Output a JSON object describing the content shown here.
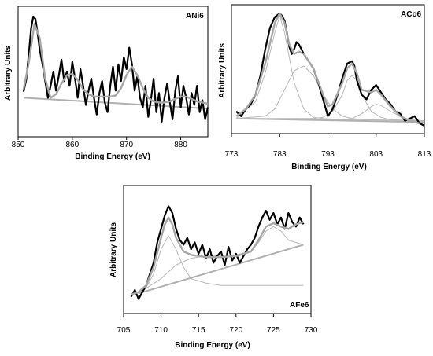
{
  "chart_data": [
    {
      "type": "line",
      "title": "ANi6",
      "xlabel": "Binding Energy (eV)",
      "ylabel": "Arbitrary Units",
      "xlim": [
        850,
        885
      ],
      "ylim": [
        0,
        100
      ],
      "xticks": [
        "850",
        "860",
        "870",
        "880"
      ],
      "xtick_values": [
        850,
        860,
        870,
        880
      ],
      "grid": false,
      "series": [
        {
          "role": "experimental",
          "x": [
            851,
            851.5,
            852,
            852.4,
            852.8,
            853.2,
            853.6,
            854,
            854.5,
            855,
            855.5,
            856,
            856.5,
            857,
            857.5,
            858,
            858.5,
            859,
            859.5,
            860,
            860.5,
            861,
            861.5,
            862,
            862.5,
            863,
            863.5,
            864,
            864.5,
            865,
            865.5,
            866,
            866.5,
            867,
            867.5,
            868,
            868.5,
            869,
            869.5,
            870,
            870.5,
            871,
            871.5,
            872,
            872.5,
            873,
            873.5,
            874,
            874.5,
            875,
            875.5,
            876,
            876.5,
            877,
            877.5,
            878,
            878.5,
            879,
            879.5,
            880,
            880.5,
            881,
            881.5,
            882,
            882.5,
            883,
            883.5,
            884,
            884.5,
            885
          ],
          "y": [
            35,
            45,
            68,
            88,
            98,
            96,
            84,
            70,
            58,
            44,
            30,
            40,
            52,
            36,
            48,
            62,
            44,
            52,
            40,
            60,
            46,
            30,
            54,
            40,
            24,
            36,
            46,
            30,
            16,
            34,
            44,
            26,
            18,
            40,
            56,
            36,
            58,
            44,
            64,
            54,
            72,
            58,
            36,
            48,
            30,
            22,
            40,
            14,
            28,
            46,
            18,
            34,
            10,
            30,
            42,
            26,
            12,
            36,
            48,
            22,
            40,
            30,
            16,
            34,
            24,
            40,
            18,
            28,
            12,
            22
          ]
        },
        {
          "role": "fit",
          "x": [
            851,
            852,
            853,
            854,
            855,
            856,
            857,
            858,
            859,
            860,
            861,
            862,
            863,
            864,
            865,
            866,
            867,
            868,
            869,
            870,
            871,
            872,
            873,
            874,
            875,
            876,
            877,
            878,
            879,
            880,
            881,
            882,
            883,
            884,
            885
          ],
          "y": [
            37,
            60,
            92,
            80,
            46,
            30,
            33,
            42,
            49,
            50,
            45,
            37,
            33,
            31,
            31,
            31,
            31,
            32,
            38,
            49,
            56,
            49,
            38,
            30,
            27,
            26,
            26,
            27,
            29,
            31,
            31,
            29,
            27,
            26,
            25
          ]
        },
        {
          "role": "baseline",
          "x": [
            851,
            885
          ],
          "y": [
            30,
            21
          ]
        }
      ]
    },
    {
      "type": "line",
      "title": "ACo6",
      "xlabel": "Binding Energy (eV)",
      "ylabel": "Arbitrary Units",
      "xlim": [
        773,
        813
      ],
      "ylim": [
        0,
        100
      ],
      "xticks": [
        "773",
        "783",
        "793",
        "803",
        "813"
      ],
      "xtick_values": [
        773,
        783,
        793,
        803,
        813
      ],
      "grid": false,
      "series": [
        {
          "role": "experimental",
          "x": [
            774,
            775,
            776,
            777,
            778,
            779,
            780,
            781,
            782,
            783,
            783.5,
            784,
            784.5,
            785,
            785.5,
            786,
            786.5,
            787,
            788,
            789,
            790,
            791,
            792,
            793,
            794,
            795,
            796,
            797,
            798,
            798.5,
            799,
            800,
            801,
            802,
            803,
            804,
            805,
            806,
            807,
            808,
            809,
            810,
            811,
            812,
            813
          ],
          "y": [
            16,
            12,
            18,
            22,
            30,
            46,
            68,
            86,
            95,
            98,
            96,
            92,
            82,
            70,
            64,
            68,
            74,
            72,
            64,
            58,
            52,
            40,
            26,
            12,
            18,
            30,
            44,
            56,
            58,
            54,
            42,
            30,
            26,
            34,
            38,
            32,
            26,
            22,
            16,
            14,
            8,
            10,
            12,
            6,
            4
          ]
        },
        {
          "role": "fit",
          "x": [
            774,
            776,
            778,
            780,
            782,
            783,
            784,
            785,
            786,
            787,
            788,
            790,
            792,
            793,
            794,
            796,
            797,
            798,
            799,
            800,
            802,
            803,
            804,
            806,
            808,
            810,
            812
          ],
          "y": [
            12,
            18,
            30,
            56,
            90,
            98,
            90,
            72,
            64,
            66,
            64,
            52,
            30,
            20,
            22,
            40,
            52,
            56,
            48,
            34,
            32,
            34,
            30,
            20,
            12,
            8,
            6
          ]
        },
        {
          "role": "component",
          "x": [
            774,
            778,
            780,
            782,
            783,
            784,
            786,
            788,
            790,
            792,
            796,
            800,
            813
          ],
          "y": [
            10,
            24,
            48,
            82,
            96,
            82,
            40,
            18,
            11,
            10,
            9,
            9,
            8
          ]
        },
        {
          "role": "component",
          "x": [
            774,
            780,
            782,
            784,
            786,
            788,
            790,
            792,
            794,
            796,
            798,
            800,
            813
          ],
          "y": [
            10,
            12,
            18,
            34,
            50,
            54,
            46,
            30,
            18,
            12,
            10,
            9,
            8
          ]
        },
        {
          "role": "component",
          "x": [
            774,
            790,
            792,
            794,
            796,
            797,
            798,
            799,
            800,
            802,
            804,
            806,
            813
          ],
          "y": [
            10,
            10,
            11,
            16,
            30,
            42,
            46,
            42,
            30,
            16,
            11,
            9,
            8
          ]
        },
        {
          "role": "component",
          "x": [
            774,
            796,
            798,
            800,
            802,
            803,
            804,
            806,
            808,
            810,
            813
          ],
          "y": [
            10,
            9,
            10,
            14,
            20,
            22,
            21,
            16,
            12,
            9,
            8
          ]
        },
        {
          "role": "baseline",
          "x": [
            774,
            813
          ],
          "y": [
            10,
            7
          ]
        }
      ]
    },
    {
      "type": "line",
      "title": "AFe6",
      "xlabel": "Binding Energy (eV)",
      "ylabel": "Arbitrary Units",
      "xlim": [
        705,
        730
      ],
      "ylim": [
        0,
        100
      ],
      "xticks": [
        "705",
        "710",
        "715",
        "720",
        "725",
        "730"
      ],
      "xtick_values": [
        705,
        710,
        715,
        720,
        725,
        730
      ],
      "grid": false,
      "series": [
        {
          "role": "experimental",
          "x": [
            706,
            706.5,
            707,
            707.5,
            708,
            708.5,
            709,
            709.5,
            710,
            710.5,
            711,
            711.5,
            712,
            712.5,
            713,
            713.5,
            714,
            714.5,
            715,
            715.5,
            716,
            716.5,
            717,
            717.5,
            718,
            718.5,
            719,
            719.5,
            720,
            720.5,
            721,
            721.5,
            722,
            722.5,
            723,
            723.5,
            724,
            724.5,
            725,
            725.5,
            726,
            726.5,
            727,
            727.5,
            728,
            728.5,
            729
          ],
          "y": [
            10,
            16,
            8,
            14,
            20,
            30,
            40,
            58,
            70,
            82,
            90,
            84,
            70,
            60,
            56,
            62,
            52,
            58,
            48,
            56,
            44,
            52,
            40,
            46,
            50,
            38,
            54,
            42,
            48,
            40,
            46,
            52,
            56,
            62,
            72,
            80,
            86,
            78,
            84,
            74,
            80,
            70,
            84,
            76,
            72,
            80,
            74
          ]
        },
        {
          "role": "fit",
          "x": [
            706,
            707,
            708,
            709,
            710,
            710.5,
            711,
            711.5,
            712,
            713,
            714,
            716,
            718,
            720,
            722,
            723,
            724,
            725,
            726,
            727,
            728,
            729
          ],
          "y": [
            12,
            14,
            20,
            36,
            62,
            74,
            80,
            74,
            62,
            50,
            47,
            45,
            45,
            46,
            50,
            60,
            72,
            75,
            72,
            70,
            74,
            76
          ]
        },
        {
          "role": "component",
          "x": [
            707,
            708,
            709,
            710,
            711,
            712,
            713,
            714,
            716,
            718,
            722,
            726,
            729
          ],
          "y": [
            13,
            18,
            30,
            52,
            64,
            52,
            36,
            26,
            22,
            20,
            20,
            20,
            20
          ]
        },
        {
          "role": "component",
          "x": [
            707,
            710,
            712,
            714,
            716,
            720,
            722,
            723,
            724,
            725,
            726,
            727,
            728,
            729
          ],
          "y": [
            13,
            26,
            38,
            44,
            46,
            47,
            50,
            58,
            68,
            72,
            68,
            60,
            58,
            56
          ]
        },
        {
          "role": "baseline",
          "x": [
            707,
            729
          ],
          "y": [
            13,
            56
          ]
        }
      ]
    }
  ]
}
